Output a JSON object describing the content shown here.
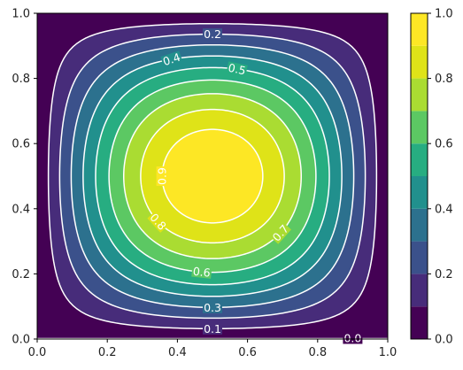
{
  "chart_data": {
    "type": "contour",
    "title": "",
    "xlabel": "",
    "ylabel": "",
    "xlim": [
      0.0,
      1.0
    ],
    "ylim": [
      0.0,
      1.0
    ],
    "x_ticks": [
      "0.0",
      "0.2",
      "0.4",
      "0.6",
      "0.8",
      "1.0"
    ],
    "y_ticks": [
      "0.0",
      "0.2",
      "0.4",
      "0.6",
      "0.8",
      "1.0"
    ],
    "function": "sin(pi*x)*sin(pi*y)",
    "colormap": "viridis",
    "fill_levels": [
      0.0,
      0.1,
      0.2,
      0.3,
      0.4,
      0.5,
      0.6,
      0.7,
      0.8,
      0.9,
      1.0
    ],
    "fill_colors": [
      "#472c7a",
      "#3b518b",
      "#2c718e",
      "#21908d",
      "#27ad81",
      "#5cc863",
      "#aadc32",
      "#e5e419",
      "#fde725",
      "#fde725"
    ],
    "line_levels": [
      0.1,
      0.2,
      0.3,
      0.4,
      0.5,
      0.6,
      0.7,
      0.8,
      0.9
    ],
    "line_color": "#ffffff",
    "contour_labels": [
      {
        "text": "0.2",
        "level": 0.2
      },
      {
        "text": "0.4",
        "level": 0.4
      },
      {
        "text": "0.5",
        "level": 0.5
      },
      {
        "text": "0.9",
        "level": 0.9
      },
      {
        "text": "0.8",
        "level": 0.8
      },
      {
        "text": "0.7",
        "level": 0.7
      },
      {
        "text": "0.6",
        "level": 0.6
      },
      {
        "text": "0.3",
        "level": 0.3
      },
      {
        "text": "0.1",
        "level": 0.1
      },
      {
        "text": "0.0",
        "level": 0.0
      }
    ],
    "colorbar": {
      "ticks": [
        "0.0",
        "0.2",
        "0.4",
        "0.6",
        "0.8",
        "1.0"
      ],
      "levels": [
        0.0,
        0.1,
        0.2,
        0.3,
        0.4,
        0.5,
        0.6,
        0.7,
        0.8,
        0.9,
        1.0
      ],
      "colors": [
        "#440154",
        "#472c7a",
        "#3b518b",
        "#2c718e",
        "#21908d",
        "#27ad81",
        "#5cc863",
        "#aadc32",
        "#dfe318",
        "#fde725"
      ]
    },
    "grid": false
  }
}
